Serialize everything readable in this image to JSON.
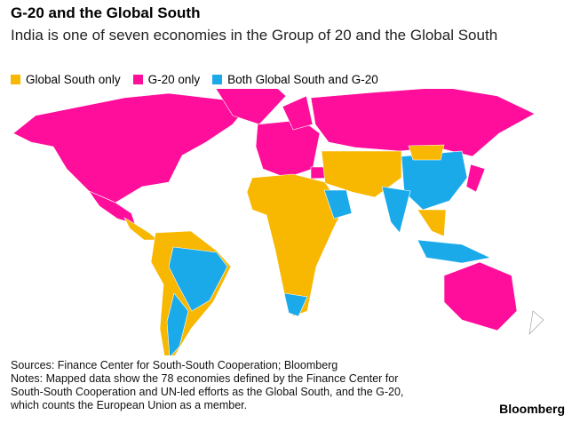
{
  "header": {
    "title": "G-20 and the Global South",
    "subtitle": "India is one of seven economies in the Group of 20 and the Global South"
  },
  "legend": {
    "items": [
      {
        "label": "Global South only",
        "color": "#f8b700"
      },
      {
        "label": "G-20 only",
        "color": "#ff0d9b"
      },
      {
        "label": "Both Global South and G-20",
        "color": "#1aaaea"
      }
    ]
  },
  "footer": {
    "sources": "Sources: Finance Center for South-South Cooperation; Bloomberg",
    "notes": [
      "Notes: Mapped data show the 78 economies defined by the Finance Center for",
      "South-South Cooperation and UN-led efforts as the Global South, and the G-20,",
      "which counts the European Union as a member."
    ],
    "brand": "Bloomberg"
  }
}
